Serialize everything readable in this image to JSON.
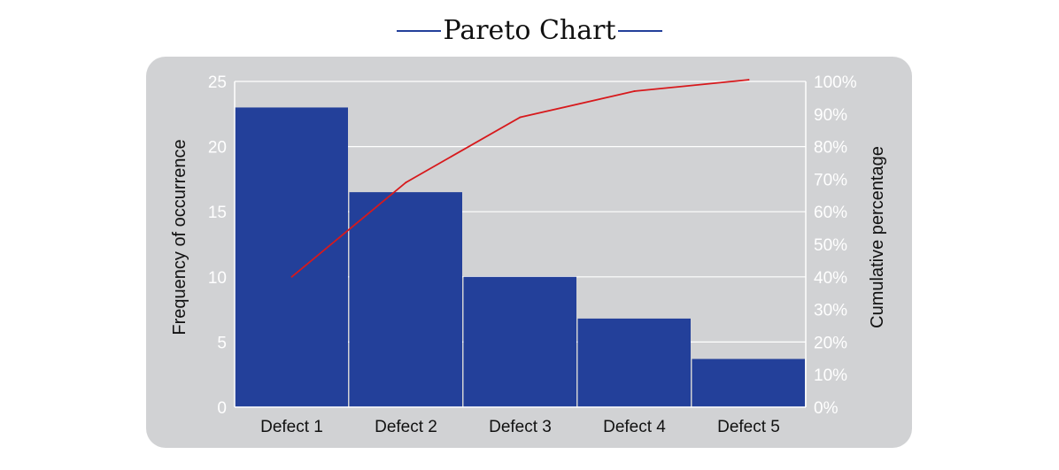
{
  "chart_data": {
    "type": "bar",
    "title": "Pareto Chart",
    "categories": [
      "Defect 1",
      "Defect 2",
      "Defect 3",
      "Defect 4",
      "Defect 5"
    ],
    "values": [
      23,
      16.5,
      10,
      6.8,
      3.7
    ],
    "line": {
      "axis": "right",
      "values": [
        40,
        69,
        89,
        97,
        100.5
      ]
    },
    "ylabel": "Frequency of occurrence",
    "y2label": "Cumulative percentage",
    "ylim": [
      0,
      25
    ],
    "y2lim": [
      0,
      100
    ],
    "yticks": [
      "0",
      "5",
      "10",
      "15",
      "20",
      "25"
    ],
    "y2ticks": [
      "0%",
      "10%",
      "20%",
      "30%",
      "40%",
      "50%",
      "60%",
      "70%",
      "80%",
      "90%",
      "100%"
    ],
    "grid": true,
    "colors": {
      "bars": "#23409a",
      "line": "#d7191c",
      "panel": "#d1d2d4",
      "grid": "#ffffff",
      "title_rule": "#23409a"
    }
  }
}
